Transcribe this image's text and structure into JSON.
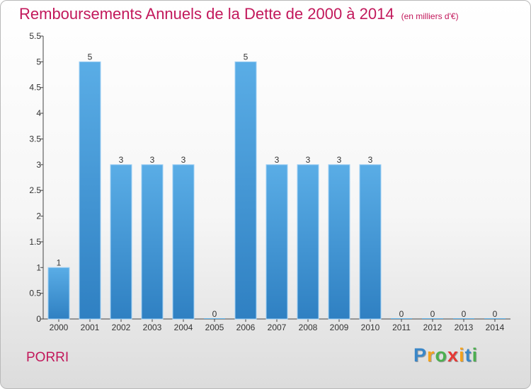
{
  "chart_data": {
    "type": "bar",
    "title": "Remboursements Annuels de la Dette de 2000 à 2014",
    "subtitle": "(en milliers d'€)",
    "categories": [
      "2000",
      "2001",
      "2002",
      "2003",
      "2004",
      "2005",
      "2006",
      "2007",
      "2008",
      "2009",
      "2010",
      "2011",
      "2012",
      "2013",
      "2014"
    ],
    "values": [
      1,
      5,
      3,
      3,
      3,
      0,
      5,
      3,
      3,
      3,
      3,
      0,
      0,
      0,
      0
    ],
    "data_labels": [
      "1",
      "5",
      "3",
      "3",
      "3",
      "0",
      "5",
      "3",
      "3",
      "3",
      "3",
      "0",
      "0",
      "0",
      "0"
    ],
    "yticks": [
      "0",
      "0.5",
      "1",
      "1.5",
      "2",
      "2.5",
      "3",
      "3.5",
      "4",
      "4.5",
      "5",
      "5.5"
    ],
    "ylim": [
      0,
      5.5
    ],
    "grid": false,
    "bar_color": "#5aade6"
  },
  "footer": {
    "commune": "PORRI",
    "logo_letters": [
      "P",
      "r",
      "o",
      "x",
      "i",
      "t",
      "i"
    ],
    "logo_colors": [
      "#3a87c8",
      "#f4a21c",
      "#4caf50",
      "#e53935",
      "#f4a21c",
      "#3a87c8",
      "#4caf50"
    ]
  },
  "colors": {
    "title": "#c2185b",
    "axis": "#333333"
  }
}
